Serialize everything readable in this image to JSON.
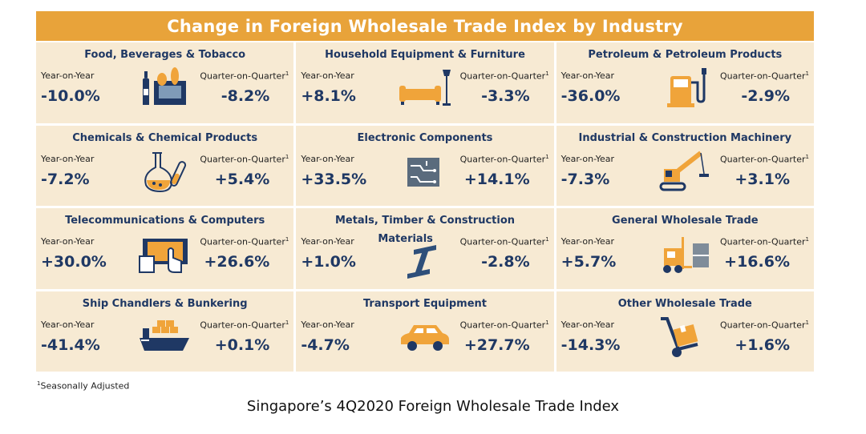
{
  "title": "Change in Foreign Wholesale Trade Index by Industry",
  "labels": {
    "yoy": "Year-on-Year",
    "qoq": "Quarter-on-Quarter",
    "qoq_sup": "1"
  },
  "industries": [
    {
      "name": "Food, Beverages & Tobacco",
      "yoy": "-10.0%",
      "qoq": "-8.2%",
      "icon": "grocery-basket-icon"
    },
    {
      "name": "Household Equipment & Furniture",
      "yoy": "+8.1%",
      "qoq": "-3.3%",
      "icon": "sofa-lamp-icon"
    },
    {
      "name": "Petroleum & Petroleum Products",
      "yoy": "-36.0%",
      "qoq": "-2.9%",
      "icon": "fuel-pump-icon"
    },
    {
      "name": "Chemicals & Chemical Products",
      "yoy": "-7.2%",
      "qoq": "+5.4%",
      "icon": "flask-icon"
    },
    {
      "name": "Electronic Components",
      "yoy": "+33.5%",
      "qoq": "+14.1%",
      "icon": "circuit-chip-icon"
    },
    {
      "name": "Industrial & Construction Machinery",
      "yoy": "-7.3%",
      "qoq": "+3.1%",
      "icon": "crane-icon"
    },
    {
      "name": "Telecommunications & Computers",
      "yoy": "+30.0%",
      "qoq": "+26.6%",
      "icon": "touchscreen-icon"
    },
    {
      "name": "Metals, Timber & Construction",
      "name_line2": "Materials",
      "yoy": "+1.0%",
      "qoq": "-2.8%",
      "icon": "steel-beam-icon"
    },
    {
      "name": "General Wholesale Trade",
      "yoy": "+5.7%",
      "qoq": "+16.6%",
      "icon": "forklift-icon"
    },
    {
      "name": "Ship Chandlers & Bunkering",
      "yoy": "-41.4%",
      "qoq": "+0.1%",
      "icon": "cargo-ship-icon"
    },
    {
      "name": "Transport Equipment",
      "yoy": "-4.7%",
      "qoq": "+27.7%",
      "icon": "car-icon"
    },
    {
      "name": "Other Wholesale Trade",
      "yoy": "-14.3%",
      "qoq": "+1.6%",
      "icon": "hand-truck-icon"
    }
  ],
  "footnote": {
    "sup": "1",
    "text": "Seasonally Adjusted"
  },
  "caption": "Singapore’s 4Q2020 Foreign Wholesale Trade Index",
  "colors": {
    "banner": "#e8a33a",
    "panel": "#f7ead3",
    "text": "#1f3864",
    "icon_orange": "#f0a43a",
    "icon_navy": "#1f3864"
  }
}
